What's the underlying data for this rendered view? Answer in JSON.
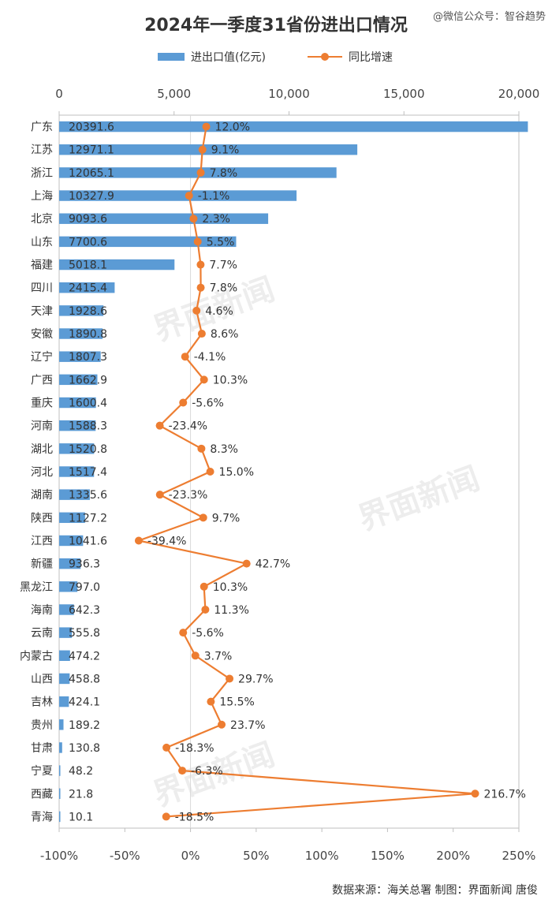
{
  "header": {
    "title": "2024年一季度31省份进出口情况",
    "account": "@微信公众号：智谷趋势"
  },
  "legend": {
    "bar_label": "进出口值(亿元)",
    "line_label": "同比增速"
  },
  "footer": {
    "source": "数据来源：海关总署  制图：界面新闻 唐俊"
  },
  "watermark": {
    "text": "界面新闻"
  },
  "colors": {
    "bar": "#5b9bd5",
    "line": "#ed7d31"
  },
  "chart_data": {
    "type": "bar",
    "title": "2024年一季度31省份进出口情况",
    "categories": [
      "广东",
      "江苏",
      "浙江",
      "上海",
      "北京",
      "山东",
      "福建",
      "四川",
      "天津",
      "安徽",
      "辽宁",
      "广西",
      "重庆",
      "河南",
      "湖北",
      "河北",
      "湖南",
      "陕西",
      "江西",
      "新疆",
      "黑龙江",
      "海南",
      "云南",
      "内蒙古",
      "山西",
      "吉林",
      "贵州",
      "甘肃",
      "宁夏",
      "西藏",
      "青海"
    ],
    "series": [
      {
        "name": "进出口值(亿元)",
        "type": "bar",
        "axis": "top",
        "values": [
          20391.6,
          12971.1,
          12065.1,
          10327.9,
          9093.6,
          7700.6,
          5018.1,
          2415.4,
          1928.6,
          1890.8,
          1807.3,
          1662.9,
          1600.4,
          1588.3,
          1520.8,
          1517.4,
          1335.6,
          1127.2,
          1041.6,
          936.3,
          797.0,
          642.3,
          555.8,
          474.2,
          458.8,
          424.1,
          189.2,
          130.8,
          48.2,
          21.8,
          10.1
        ],
        "labels": [
          "20391.6",
          "12971.1",
          "12065.1",
          "10327.9",
          "9093.6",
          "7700.6",
          "5018.1",
          "2415.4",
          "1928.6",
          "1890.8",
          "1807.3",
          "1662.9",
          "1600.4",
          "1588.3",
          "1520.8",
          "1517.4",
          "1335.6",
          "1127.2",
          "1041.6",
          "936.3",
          "797.0",
          "642.3",
          "555.8",
          "474.2",
          "458.8",
          "424.1",
          "189.2",
          "130.8",
          "48.2",
          "21.8",
          "10.1"
        ]
      },
      {
        "name": "同比增速",
        "type": "line",
        "axis": "bottom",
        "values": [
          12.0,
          9.1,
          7.8,
          -1.1,
          2.3,
          5.5,
          7.7,
          7.8,
          4.6,
          8.6,
          -4.1,
          10.3,
          -5.6,
          -23.4,
          8.3,
          15.0,
          -23.3,
          9.7,
          -39.4,
          42.7,
          10.3,
          11.3,
          -5.6,
          3.7,
          29.7,
          15.5,
          23.7,
          -18.3,
          -6.3,
          216.7,
          -18.5
        ],
        "labels": [
          "12.0%",
          "9.1%",
          "7.8%",
          "-1.1%",
          "2.3%",
          "5.5%",
          "7.7%",
          "7.8%",
          "4.6%",
          "8.6%",
          "-4.1%",
          "10.3%",
          "-5.6%",
          "-23.4%",
          "8.3%",
          "15.0%",
          "-23.3%",
          "9.7%",
          "-39.4%",
          "42.7%",
          "10.3%",
          "11.3%",
          "-5.6%",
          "3.7%",
          "29.7%",
          "15.5%",
          "23.7%",
          "-18.3%",
          "-6.3%",
          "216.7%",
          "-18.5%"
        ]
      }
    ],
    "top_axis": {
      "min": 0,
      "max": 20000,
      "ticks": [
        0,
        5000,
        10000,
        15000,
        20000
      ],
      "tick_labels": [
        "0",
        "5,000",
        "10,000",
        "15,000",
        "20,000"
      ]
    },
    "bottom_axis": {
      "min": -100,
      "max": 250,
      "ticks": [
        -100,
        -50,
        0,
        50,
        100,
        150,
        200,
        250
      ],
      "tick_labels": [
        "-100%",
        "-50%",
        "0%",
        "50%",
        "100%",
        "150%",
        "200%",
        "250%"
      ]
    },
    "legend_position": "top",
    "grid": false
  }
}
